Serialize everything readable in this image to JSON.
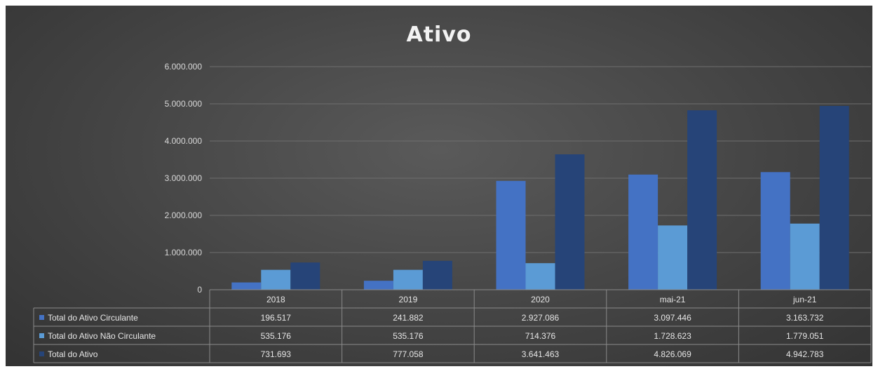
{
  "chart_data": {
    "type": "bar",
    "title": "Ativo",
    "categories": [
      "2018",
      "2019",
      "2020",
      "mai-21",
      "jun-21"
    ],
    "series": [
      {
        "name": "Total do Ativo Circulante",
        "values": [
          196517,
          241882,
          2927086,
          3097446,
          3163732
        ],
        "labels": [
          "196.517",
          "241.882",
          "2.927.086",
          "3.097.446",
          "3.163.732"
        ],
        "color": "#4472c4"
      },
      {
        "name": "Total do Ativo Não Circulante",
        "values": [
          535176,
          535176,
          714376,
          1728623,
          1779051
        ],
        "labels": [
          "535.176",
          "535.176",
          "714.376",
          "1.728.623",
          "1.779.051"
        ],
        "color": "#5b9bd5"
      },
      {
        "name": "Total do Ativo",
        "values": [
          731693,
          777058,
          3641463,
          4826069,
          4942783
        ],
        "labels": [
          "731.693",
          "777.058",
          "3.641.463",
          "4.826.069",
          "4.942.783"
        ],
        "color": "#264478"
      }
    ],
    "ylim": [
      0,
      6000000
    ],
    "yticks": [
      0,
      1000000,
      2000000,
      3000000,
      4000000,
      5000000,
      6000000
    ],
    "ytick_labels": [
      "0",
      "1.000.000",
      "2.000.000",
      "3.000.000",
      "4.000.000",
      "5.000.000",
      "6.000.000"
    ],
    "grid": true,
    "legend": "data-table"
  }
}
